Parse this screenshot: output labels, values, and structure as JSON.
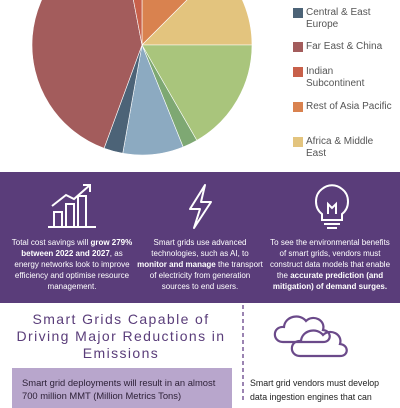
{
  "chart_data": {
    "type": "pie",
    "categories": [
      "Rest of Asia Pacific",
      "Africa & Middle East",
      null,
      null,
      null,
      "Central & East Europe",
      "Far East & China",
      "Indian Subcontinent"
    ],
    "values": [
      12.5,
      12.5,
      16.7,
      2.2,
      8.9,
      2.8,
      41.4,
      3
    ],
    "colors": [
      "#d9824f",
      "#e3c47e",
      "#a9c57c",
      "#7ea873",
      "#8caac1",
      "#4c6377",
      "#a35c5c",
      "#c8604a"
    ],
    "legend_order": [
      5,
      6,
      7,
      0,
      1
    ]
  },
  "band": {
    "columns": [
      [
        {
          "t": "Total cost savings will ",
          "b": false
        },
        {
          "t": "grow 279% between 2022 and 2027",
          "b": true
        },
        {
          "t": ", as energy networks look to improve efficiency and optimise resource management.",
          "b": false
        }
      ],
      [
        {
          "t": "Smart grids use advanced technologies, such as AI, to ",
          "b": false
        },
        {
          "t": "monitor and manage",
          "b": true
        },
        {
          "t": " the transport of electricity from generation sources to end users.",
          "b": false
        }
      ],
      [
        {
          "t": "To see the environmental benefits of smart grids, vendors must construct data models that enable the ",
          "b": false
        },
        {
          "t": "accurate prediction (and mitigation) of demand surges.",
          "b": true
        }
      ]
    ]
  },
  "section": {
    "heading": "Smart Grids Capable of Driving Major Reductions in Emissions",
    "box_text": "Smart grid deployments will result in an almost 700 million MMT (Million Metrics Tons)",
    "right_text": "Smart grid vendors must develop data ingestion engines that can"
  }
}
